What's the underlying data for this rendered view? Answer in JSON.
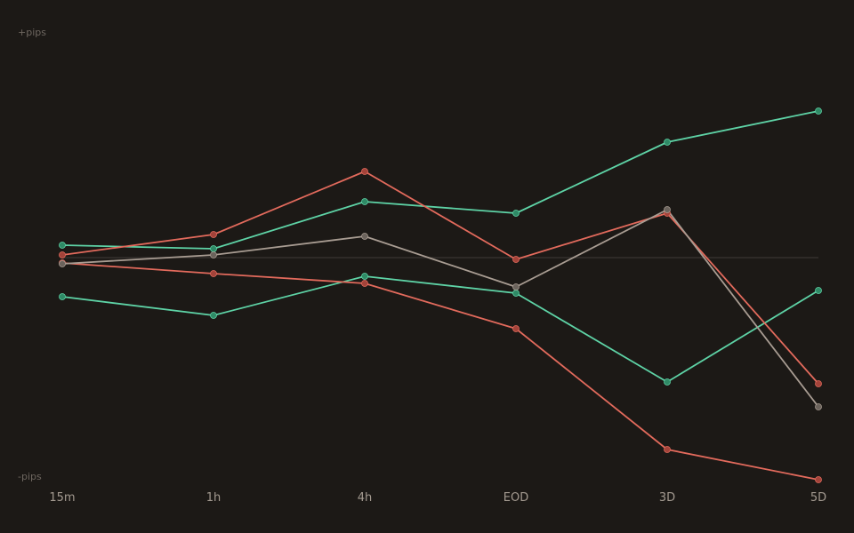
{
  "colors": {
    "background": "#1c1916",
    "zero_line": "#3a3532",
    "axis_text": "#a39a90",
    "y_label_text": "#6e6760",
    "green": "#5ed3a6",
    "red": "#e26a5c",
    "gray": "#a89c92",
    "green_marker": "#2f8a66",
    "red_marker": "#a3433a",
    "gray_marker": "#6b635c"
  },
  "chart_data": {
    "type": "line",
    "title": "",
    "xlabel": "",
    "ylabel": "",
    "y_top_label": "+pips",
    "y_bottom_label": "-pips",
    "categories": [
      "15m",
      "1h",
      "4h",
      "EOD",
      "3D",
      "5D"
    ],
    "ylim": [
      -250,
      250
    ],
    "zero_line": true,
    "grid": false,
    "legend": "none",
    "series": [
      {
        "color": "green",
        "values": [
          14,
          10,
          63,
          50,
          130,
          165
        ]
      },
      {
        "color": "green",
        "values": [
          -44,
          -65,
          -21,
          -40,
          -140,
          -37
        ]
      },
      {
        "color": "red",
        "values": [
          3,
          26,
          97,
          -2,
          50,
          -142
        ]
      },
      {
        "color": "red",
        "values": [
          -6,
          -18,
          -29,
          -80,
          -216,
          -250
        ]
      },
      {
        "color": "gray",
        "values": [
          -7,
          3,
          24,
          -33,
          54,
          -168
        ]
      }
    ]
  }
}
